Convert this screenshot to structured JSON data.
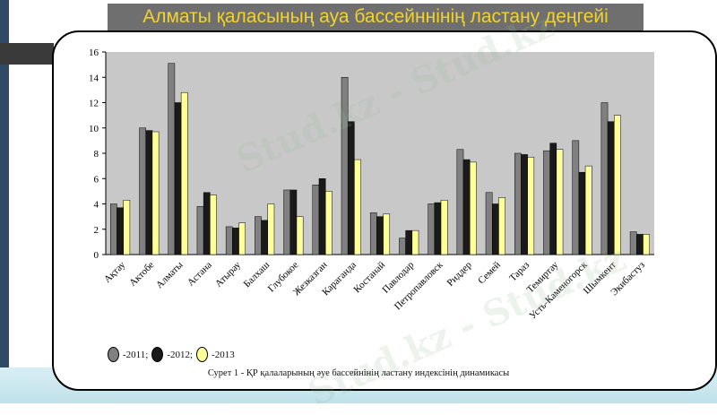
{
  "title": "Алматы қаласының ауа бассейннінің ластану деңгейі",
  "caption": "Сурет 1 - ҚР қалаларының әуе бассейнінің ластану индексінің динамикасы",
  "watermark": "Stud.kz - Stud.kz",
  "colors": {
    "s2011": "#808080",
    "s2012": "#1a1a1a",
    "s2013": "#ffff99"
  },
  "chart_data": {
    "type": "bar",
    "title": "",
    "xlabel": "",
    "ylabel": "",
    "ylim": [
      0,
      16
    ],
    "yticks": [
      "0",
      "2",
      "4",
      "6",
      "8",
      "10",
      "12",
      "14",
      "16"
    ],
    "grid": false,
    "legend_position": "bottom-left",
    "categories": [
      "Ақтау",
      "Актобе",
      "Алматы",
      "Астана",
      "Атырау",
      "Балхаш",
      "Глубокое",
      "Жезказган",
      "Караганда",
      "Костанай",
      "Павлодар",
      "Петропавловск",
      "Риддер",
      "Семей",
      "Тараз",
      "Темиртау",
      "Усть-Каменогорск",
      "Шымкент",
      "Экибастуз"
    ],
    "series": [
      {
        "name": "2011",
        "legend_label": "-2011;",
        "values": [
          4.0,
          10.0,
          15.1,
          3.8,
          2.2,
          3.0,
          5.1,
          5.5,
          14.0,
          3.3,
          1.3,
          4.0,
          8.3,
          4.9,
          8.0,
          8.2,
          9.0,
          12.0,
          1.8
        ]
      },
      {
        "name": "2012",
        "legend_label": "-2012;",
        "values": [
          3.7,
          9.8,
          12.0,
          4.9,
          2.1,
          2.7,
          5.1,
          6.0,
          10.5,
          3.0,
          1.9,
          4.1,
          7.5,
          4.0,
          7.9,
          8.8,
          6.5,
          10.5,
          1.6
        ]
      },
      {
        "name": "2013",
        "legend_label": "-2013",
        "values": [
          4.3,
          9.7,
          12.8,
          4.7,
          2.5,
          4.0,
          3.0,
          5.0,
          7.5,
          3.2,
          1.9,
          4.3,
          7.3,
          4.5,
          7.7,
          8.3,
          7.0,
          11.0,
          1.6
        ]
      }
    ]
  }
}
